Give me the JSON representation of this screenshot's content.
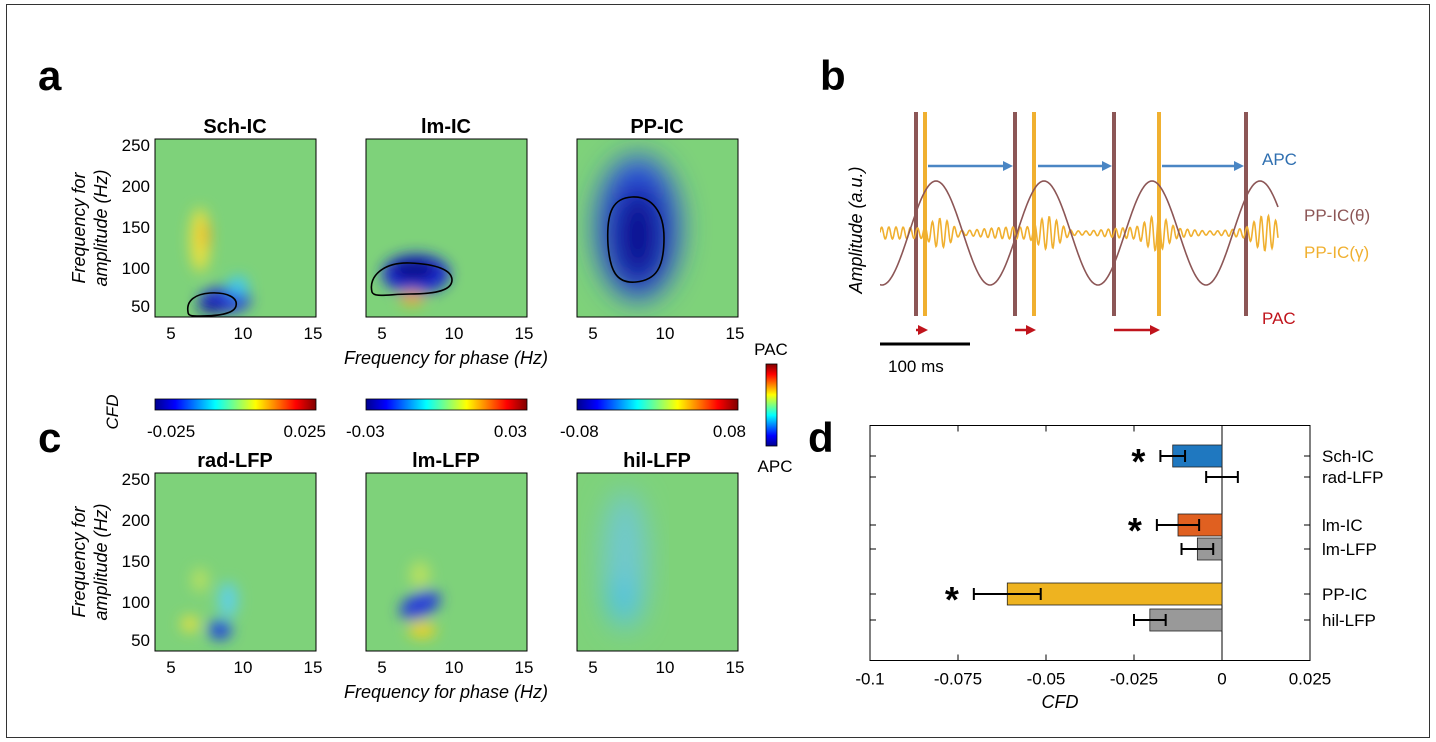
{
  "panel_letters": {
    "a": "a",
    "b": "b",
    "c": "c",
    "d": "d"
  },
  "panel_a": {
    "titles": [
      "Sch-IC",
      "lm-IC",
      "PP-IC"
    ],
    "ylabel_line1": "Frequency for",
    "ylabel_line2": "amplitude (Hz)",
    "xlabel": "Frequency for phase (Hz)",
    "yticks": [
      "250",
      "200",
      "150",
      "100",
      "50"
    ],
    "xticks": [
      "5",
      "10",
      "15"
    ]
  },
  "colorbars": {
    "label": "CFD",
    "ranges": [
      [
        "-0.025",
        "0.025"
      ],
      [
        "-0.03",
        "0.03"
      ],
      [
        "-0.08",
        "0.08"
      ]
    ],
    "vertical_top": "PAC",
    "vertical_bottom": "APC"
  },
  "panel_c": {
    "titles": [
      "rad-LFP",
      "lm-LFP",
      "hil-LFP"
    ],
    "ylabel_line1": "Frequency for",
    "ylabel_line2": "amplitude (Hz)",
    "xlabel": "Frequency for phase (Hz)",
    "yticks": [
      "250",
      "200",
      "150",
      "100",
      "50"
    ],
    "xticks": [
      "5",
      "10",
      "15"
    ]
  },
  "panel_b": {
    "ylabel": "Amplitude (a.u.)",
    "apc_label": "APC",
    "theta_label": "PP-IC(θ)",
    "gamma_label": "PP-IC(γ)",
    "pac_label": "PAC",
    "scalebar_label": "100 ms",
    "colors": {
      "theta": "#8c5656",
      "gamma": "#f0b030",
      "apc": "#4a86c4",
      "pac": "#c0141c"
    }
  },
  "chart_data": {
    "type": "bar",
    "orientation": "horizontal",
    "categories": [
      "Sch-IC",
      "rad-LFP",
      "lm-IC",
      "lm-LFP",
      "PP-IC",
      "hil-LFP"
    ],
    "values": [
      -0.014,
      0.0,
      -0.0125,
      -0.007,
      -0.061,
      -0.0205
    ],
    "errors": [
      0.0035,
      0.0045,
      0.006,
      0.0045,
      0.0095,
      0.0045
    ],
    "colors": [
      "#1f78c0",
      "#999999",
      "#e06020",
      "#999999",
      "#eeb320",
      "#999999"
    ],
    "significant": [
      "*",
      "",
      "*",
      "",
      "*",
      ""
    ],
    "xlabel": "CFD",
    "xlim": [
      -0.1,
      0.025
    ],
    "xticks": [
      "-0.1",
      "-0.075",
      "-0.05",
      "-0.025",
      "0",
      "0.025"
    ]
  }
}
